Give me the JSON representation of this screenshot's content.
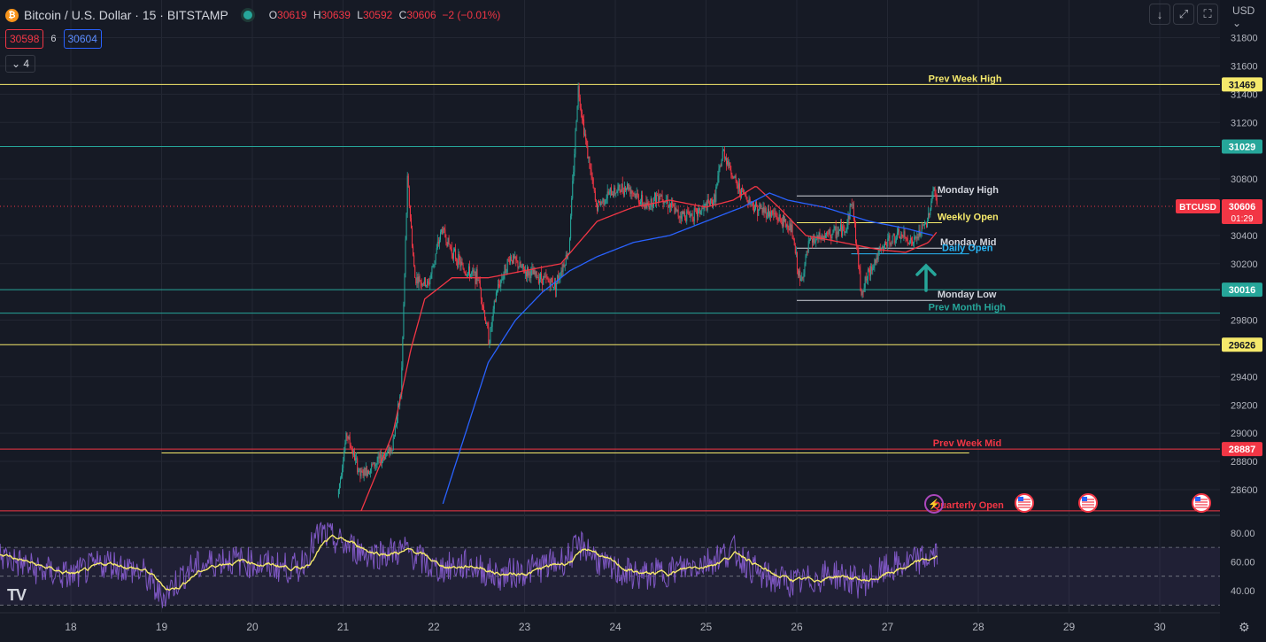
{
  "header": {
    "coin_glyph": "₿",
    "symbol": "Bitcoin / U.S. Dollar · 15 · BITSTAMP",
    "o_label": "O",
    "o": "30619",
    "h_label": "H",
    "h": "30639",
    "l_label": "L",
    "l": "30592",
    "c_label": "C",
    "c": "30606",
    "change": "−2 (−0.01%)"
  },
  "bid": "30598",
  "spread": "6",
  "ask": "30604",
  "indicator_toggle": "⌄ 4",
  "toolbar": {
    "download": "↓",
    "expand": "⤢",
    "fullscreen": "⛶",
    "currency": "USD ⌄"
  },
  "colors": {
    "background": "#161a25",
    "grid": "#232733",
    "up": "#26a69a",
    "down": "#f23645",
    "ema_fast": "#f23645",
    "ema_slow": "#2962ff",
    "yellow": "#f5e96b",
    "teal": "#26a69a",
    "red": "#f23645",
    "white": "#d1d4dc",
    "rsi": "#7e57c2",
    "rsi_ma": "#f5e96b"
  },
  "chart_data": {
    "type": "candlestick",
    "y_ticks": [
      "31800",
      "31600",
      "31400",
      "31200",
      "30800",
      "30400",
      "30200",
      "29800",
      "29400",
      "29200",
      "29000",
      "28800",
      "28600"
    ],
    "x_ticks": [
      "18",
      "19",
      "20",
      "21",
      "22",
      "23",
      "24",
      "25",
      "26",
      "27",
      "28",
      "29",
      "30"
    ],
    "price_anchor": [
      [
        20.95,
        28550
      ],
      [
        21.05,
        29000
      ],
      [
        21.2,
        28700
      ],
      [
        21.4,
        28800
      ],
      [
        21.55,
        28900
      ],
      [
        21.65,
        29300
      ],
      [
        21.72,
        30800
      ],
      [
        21.8,
        30100
      ],
      [
        21.95,
        30050
      ],
      [
        22.1,
        30450
      ],
      [
        22.2,
        30300
      ],
      [
        22.35,
        30150
      ],
      [
        22.5,
        30100
      ],
      [
        22.62,
        29650
      ],
      [
        22.7,
        30000
      ],
      [
        22.85,
        30250
      ],
      [
        23.0,
        30150
      ],
      [
        23.2,
        30100
      ],
      [
        23.35,
        30050
      ],
      [
        23.5,
        30300
      ],
      [
        23.6,
        31450
      ],
      [
        23.7,
        31000
      ],
      [
        23.8,
        30600
      ],
      [
        23.95,
        30700
      ],
      [
        24.15,
        30750
      ],
      [
        24.35,
        30600
      ],
      [
        24.5,
        30700
      ],
      [
        24.7,
        30550
      ],
      [
        24.9,
        30550
      ],
      [
        25.1,
        30650
      ],
      [
        25.2,
        31000
      ],
      [
        25.35,
        30750
      ],
      [
        25.55,
        30600
      ],
      [
        25.75,
        30550
      ],
      [
        25.95,
        30450
      ],
      [
        26.05,
        30050
      ],
      [
        26.15,
        30350
      ],
      [
        26.35,
        30400
      ],
      [
        26.55,
        30450
      ],
      [
        26.62,
        30650
      ],
      [
        26.72,
        30000
      ],
      [
        26.85,
        30200
      ],
      [
        27.0,
        30350
      ],
      [
        27.15,
        30400
      ],
      [
        27.3,
        30350
      ],
      [
        27.45,
        30500
      ],
      [
        27.52,
        30750
      ],
      [
        27.55,
        30606
      ]
    ],
    "ema_fast_anchor": [
      [
        21.2,
        28450
      ],
      [
        21.55,
        29000
      ],
      [
        21.75,
        29600
      ],
      [
        21.9,
        29950
      ],
      [
        22.2,
        30100
      ],
      [
        22.6,
        30100
      ],
      [
        23.0,
        30150
      ],
      [
        23.4,
        30200
      ],
      [
        23.6,
        30350
      ],
      [
        23.8,
        30500
      ],
      [
        24.2,
        30600
      ],
      [
        24.6,
        30650
      ],
      [
        25.0,
        30600
      ],
      [
        25.3,
        30650
      ],
      [
        25.55,
        30750
      ],
      [
        25.8,
        30600
      ],
      [
        26.1,
        30400
      ],
      [
        26.5,
        30350
      ],
      [
        26.9,
        30300
      ],
      [
        27.2,
        30280
      ],
      [
        27.45,
        30350
      ],
      [
        27.55,
        30430
      ]
    ],
    "ema_slow_anchor": [
      [
        22.1,
        28500
      ],
      [
        22.35,
        29000
      ],
      [
        22.6,
        29500
      ],
      [
        22.9,
        29800
      ],
      [
        23.2,
        30000
      ],
      [
        23.5,
        30150
      ],
      [
        23.8,
        30250
      ],
      [
        24.2,
        30350
      ],
      [
        24.6,
        30400
      ],
      [
        25.0,
        30500
      ],
      [
        25.4,
        30600
      ],
      [
        25.7,
        30700
      ],
      [
        25.9,
        30650
      ],
      [
        26.3,
        30600
      ],
      [
        26.8,
        30500
      ],
      [
        27.2,
        30450
      ],
      [
        27.5,
        30400
      ]
    ],
    "levels": [
      {
        "label": "Prev Week High",
        "price": 31469,
        "badge": "31469",
        "color": "#f5e96b",
        "badge_fg": "#131722",
        "label_x": 27.45,
        "full": true
      },
      {
        "label": "",
        "price": 31029,
        "badge": "31029",
        "color": "#26a69a",
        "badge_fg": "#ffffff",
        "full": true
      },
      {
        "label": "Monday High",
        "price": 30680,
        "color": "#d1d4dc",
        "x0": 26.0,
        "x1": 27.6,
        "label_x": 27.55
      },
      {
        "label": "Weekly Open",
        "price": 30490,
        "color": "#f5e96b",
        "x0": 26.0,
        "x1": 27.6,
        "label_x": 27.55
      },
      {
        "label": "Monday Mid",
        "price": 30310,
        "color": "#d1d4dc",
        "x0": 26.0,
        "x1": 27.6,
        "label_x": 27.58
      },
      {
        "label": "Daily Open",
        "price": 30270,
        "color": "#29b6f6",
        "x0": 26.6,
        "x1": 27.9,
        "label_x": 27.6
      },
      {
        "label": "",
        "price": 30016,
        "badge": "30016",
        "color": "#26a69a",
        "badge_fg": "#ffffff",
        "full": true
      },
      {
        "label": "Monday Low",
        "price": 29940,
        "color": "#d1d4dc",
        "x0": 26.0,
        "x1": 27.6,
        "label_x": 27.55
      },
      {
        "label": "Prev Month High",
        "price": 29850,
        "color": "#26a69a",
        "label_x": 27.45,
        "full": true
      },
      {
        "label": "",
        "price": 29626,
        "badge": "29626",
        "color": "#f5e96b",
        "badge_fg": "#131722",
        "full": true
      },
      {
        "label": "Prev Week Mid",
        "price": 28887,
        "badge": "28887",
        "color": "#f23645",
        "badge_fg": "#ffffff",
        "label_x": 27.5,
        "full": true
      },
      {
        "label": "",
        "price": 28860,
        "color": "#f5e96b",
        "x0": 19.0,
        "x1": 27.9
      },
      {
        "label": "Quarterly Open",
        "price": 28450,
        "color": "#f23645",
        "label_x": 27.5,
        "full": true
      }
    ],
    "last_badge": {
      "symbol": "BTCUSD",
      "price": "30606",
      "countdown": "01:29"
    },
    "rsi": {
      "ticks": [
        "80.00",
        "60.00",
        "40.00"
      ],
      "upper": 70,
      "mid": 50,
      "lower": 30,
      "anchor": [
        [
          17.2,
          65
        ],
        [
          17.6,
          55
        ],
        [
          18.0,
          50
        ],
        [
          18.4,
          60
        ],
        [
          18.8,
          52
        ],
        [
          19.0,
          35
        ],
        [
          19.3,
          55
        ],
        [
          19.7,
          62
        ],
        [
          20.1,
          58
        ],
        [
          20.5,
          55
        ],
        [
          20.75,
          80
        ],
        [
          21.0,
          72
        ],
        [
          21.3,
          65
        ],
        [
          21.7,
          68
        ],
        [
          22.0,
          55
        ],
        [
          22.4,
          58
        ],
        [
          22.7,
          50
        ],
        [
          23.1,
          55
        ],
        [
          23.4,
          60
        ],
        [
          23.65,
          72
        ],
        [
          23.9,
          55
        ],
        [
          24.3,
          50
        ],
        [
          24.7,
          55
        ],
        [
          25.0,
          60
        ],
        [
          25.3,
          68
        ],
        [
          25.6,
          50
        ],
        [
          26.0,
          45
        ],
        [
          26.4,
          52
        ],
        [
          26.7,
          45
        ],
        [
          27.0,
          55
        ],
        [
          27.3,
          60
        ],
        [
          27.55,
          65
        ]
      ]
    }
  }
}
